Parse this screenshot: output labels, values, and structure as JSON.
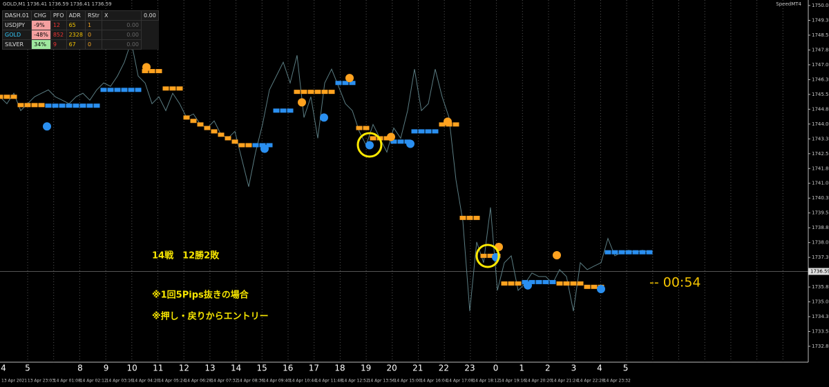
{
  "header": {
    "symbol": "GOLD,M1 1736.41 1736.59 1736.41 1736.59",
    "brand": "SpeedMT4"
  },
  "dashboard": {
    "columns": [
      "DASH.01",
      "CHG",
      "PFO",
      "ADR",
      "RStr",
      "X",
      "0.00"
    ],
    "rows": [
      [
        "USDJPY",
        "-9%",
        "12",
        "65",
        "1",
        "0.00"
      ],
      [
        "GOLD",
        "-48%",
        "852",
        "2328",
        "0",
        "0.00"
      ],
      [
        "SILVER",
        "34%",
        "9",
        "67",
        "0",
        "0.00"
      ]
    ]
  },
  "annotations": [
    "14戦　12勝2敗",
    "※1回5Pips抜きの場合",
    "※押し・戻りからエントリー"
  ],
  "timer": "-- 00:54",
  "hour_labels": [
    "4",
    "5",
    "8",
    "9",
    "10",
    "11",
    "12",
    "13",
    "14",
    "15",
    "16",
    "17",
    "18",
    "19",
    "20",
    "21",
    "22",
    "23",
    "0",
    "1",
    "2",
    "3",
    "4",
    "5"
  ],
  "time_labels": [
    "13 Apr 2021",
    "13 Apr 23:03",
    "14 Apr 01:08",
    "14 Apr 02:12",
    "14 Apr 03:16",
    "14 Apr 04:20",
    "14 Apr 05:24",
    "14 Apr 06:28",
    "14 Apr 07:32",
    "14 Apr 08:36",
    "14 Apr 09:40",
    "14 Apr 10:44",
    "14 Apr 11:48",
    "14 Apr 12:52",
    "14 Apr 13:56",
    "14 Apr 15:00",
    "14 Apr 16:04",
    "14 Apr 17:08",
    "14 Apr 18:12",
    "14 Apr 19:16",
    "14 Apr 20:20",
    "14 Apr 21:24",
    "14 Apr 22:28",
    "14 Apr 23:32"
  ],
  "chart_data": {
    "type": "line",
    "ylim": [
      1732.8,
      1750.05
    ],
    "yticks": [
      1750.05,
      {
        "value": 1749.3,
        "label": "1749.30"
      },
      1748.55,
      {
        "value": 1747.8,
        "label": "1747.80"
      },
      1747.05,
      {
        "value": 1746.3,
        "label": "1746.30"
      },
      1745.55,
      {
        "value": 1744.8,
        "label": "1744.80"
      },
      1744.05,
      {
        "value": 1743.3,
        "label": "1743.30"
      },
      1742.55,
      {
        "value": 1741.8,
        "label": "1741.80"
      },
      1741.05,
      {
        "value": 1740.3,
        "label": "1740.30"
      },
      1739.55,
      {
        "value": 1738.8,
        "label": "1738.80"
      },
      1738.05,
      {
        "value": 1737.3,
        "label": "1737.30"
      },
      {
        "value": 1735.8,
        "label": "1735.80"
      },
      1735.05,
      {
        "value": 1734.3,
        "label": "1734.30"
      },
      1733.55,
      {
        "value": 1732.8,
        "label": "1732.80"
      }
    ],
    "current_price": 1736.59,
    "price": {
      "color": "#5b7d83",
      "values": [
        1745.43,
        1745.08,
        1745.61,
        1744.73,
        1745.08,
        1745.43,
        1745.61,
        1745.78,
        1745.43,
        1745.26,
        1745.08,
        1745.43,
        1745.61,
        1745.26,
        1745.78,
        1746.13,
        1745.96,
        1746.48,
        1747.18,
        1748.23,
        1746.48,
        1746.13,
        1745.08,
        1745.43,
        1744.73,
        1745.61,
        1745.08,
        1744.38,
        1744.56,
        1744.03,
        1743.85,
        1744.21,
        1743.51,
        1743.33,
        1743.68,
        1742.28,
        1740.88,
        1742.63,
        1744.03,
        1745.78,
        1746.48,
        1747.18,
        1746.13,
        1747.53,
        1744.38,
        1745.43,
        1743.33,
        1746.13,
        1746.83,
        1745.96,
        1745.08,
        1744.73,
        1743.68,
        1742.98,
        1744.03,
        1743.33,
        1742.63,
        1743.85,
        1743.33,
        1744.73,
        1746.83,
        1744.73,
        1745.08,
        1746.83,
        1745.43,
        1744.38,
        1741.23,
        1739.13,
        1734.58,
        1738.08,
        1737.03,
        1739.83,
        1735.63,
        1737.03,
        1737.38,
        1735.63,
        1735.98,
        1736.51,
        1736.33,
        1736.33,
        1735.98,
        1736.68,
        1736.33,
        1734.58,
        1737.03,
        1736.68,
        1736.86,
        1737.03,
        1738.26,
        1737.38,
        1737.56,
        1737.66,
        1737.56,
        1737.66,
        1737.56
      ]
    },
    "sell": {
      "color": "#ffa21f",
      "values": [
        1745.43,
        1745.43,
        1745.43,
        1745.01,
        1745.01,
        1745.01,
        1745.01,
        null,
        null,
        null,
        null,
        null,
        null,
        null,
        null,
        null,
        null,
        null,
        null,
        null,
        null,
        1746.73,
        1746.73,
        1746.73,
        1745.85,
        1745.85,
        1745.85,
        1744.38,
        1744.21,
        1744.03,
        1743.85,
        1743.68,
        1743.51,
        1743.33,
        1743.16,
        1742.98,
        1742.98,
        null,
        null,
        null,
        null,
        null,
        null,
        1745.68,
        1745.68,
        1745.68,
        1745.68,
        1745.68,
        1745.68,
        null,
        null,
        null,
        1743.85,
        1743.85,
        1743.33,
        1743.33,
        1743.33,
        null,
        null,
        null,
        null,
        null,
        null,
        null,
        1744.03,
        1744.03,
        1744.03,
        1739.3,
        1739.3,
        1739.3,
        1737.38,
        1737.38,
        1737.38,
        1735.98,
        1735.98,
        1735.98,
        null,
        null,
        null,
        null,
        null,
        1735.98,
        1735.98,
        1735.98,
        1735.98,
        1735.81,
        1735.81,
        1735.81,
        null,
        null,
        null,
        null,
        null,
        null,
        null
      ]
    },
    "buy": {
      "color": "#2a8ff0",
      "values": [
        null,
        null,
        null,
        null,
        null,
        null,
        null,
        1744.98,
        1744.98,
        1744.98,
        1744.98,
        1744.98,
        1744.98,
        1744.98,
        1744.98,
        1745.78,
        1745.78,
        1745.78,
        1745.78,
        1745.78,
        1745.78,
        null,
        null,
        null,
        null,
        null,
        null,
        null,
        null,
        null,
        null,
        null,
        null,
        null,
        null,
        null,
        null,
        1742.98,
        1742.98,
        1742.98,
        1744.73,
        1744.73,
        1744.73,
        null,
        null,
        null,
        null,
        null,
        null,
        1746.13,
        1746.13,
        1746.13,
        null,
        null,
        null,
        null,
        null,
        1743.16,
        1743.16,
        1743.16,
        1743.68,
        1743.68,
        1743.68,
        1743.68,
        null,
        null,
        null,
        null,
        null,
        null,
        null,
        null,
        null,
        null,
        null,
        null,
        1736.05,
        1736.05,
        1736.05,
        1736.05,
        1736.05,
        null,
        null,
        null,
        null,
        null,
        null,
        null,
        1737.56,
        1737.56,
        1737.56,
        1737.56,
        1737.56,
        1737.56,
        1737.56
      ]
    },
    "sell_dots": {
      "x": [
        21.2,
        43.7,
        50.6,
        56.6,
        64.8,
        72.2,
        80.6
      ],
      "values": [
        1746.93,
        1745.15,
        1746.38,
        1743.4,
        1744.17,
        1737.83,
        1737.41
      ]
    },
    "buy_dots": {
      "x": [
        6.8,
        38.3,
        46.9,
        53.5,
        59.4,
        71.8,
        76.4,
        87
      ],
      "values": [
        1743.93,
        1742.8,
        1744.38,
        1742.98,
        1743.05,
        1737.31,
        1735.88,
        1735.7
      ]
    }
  }
}
